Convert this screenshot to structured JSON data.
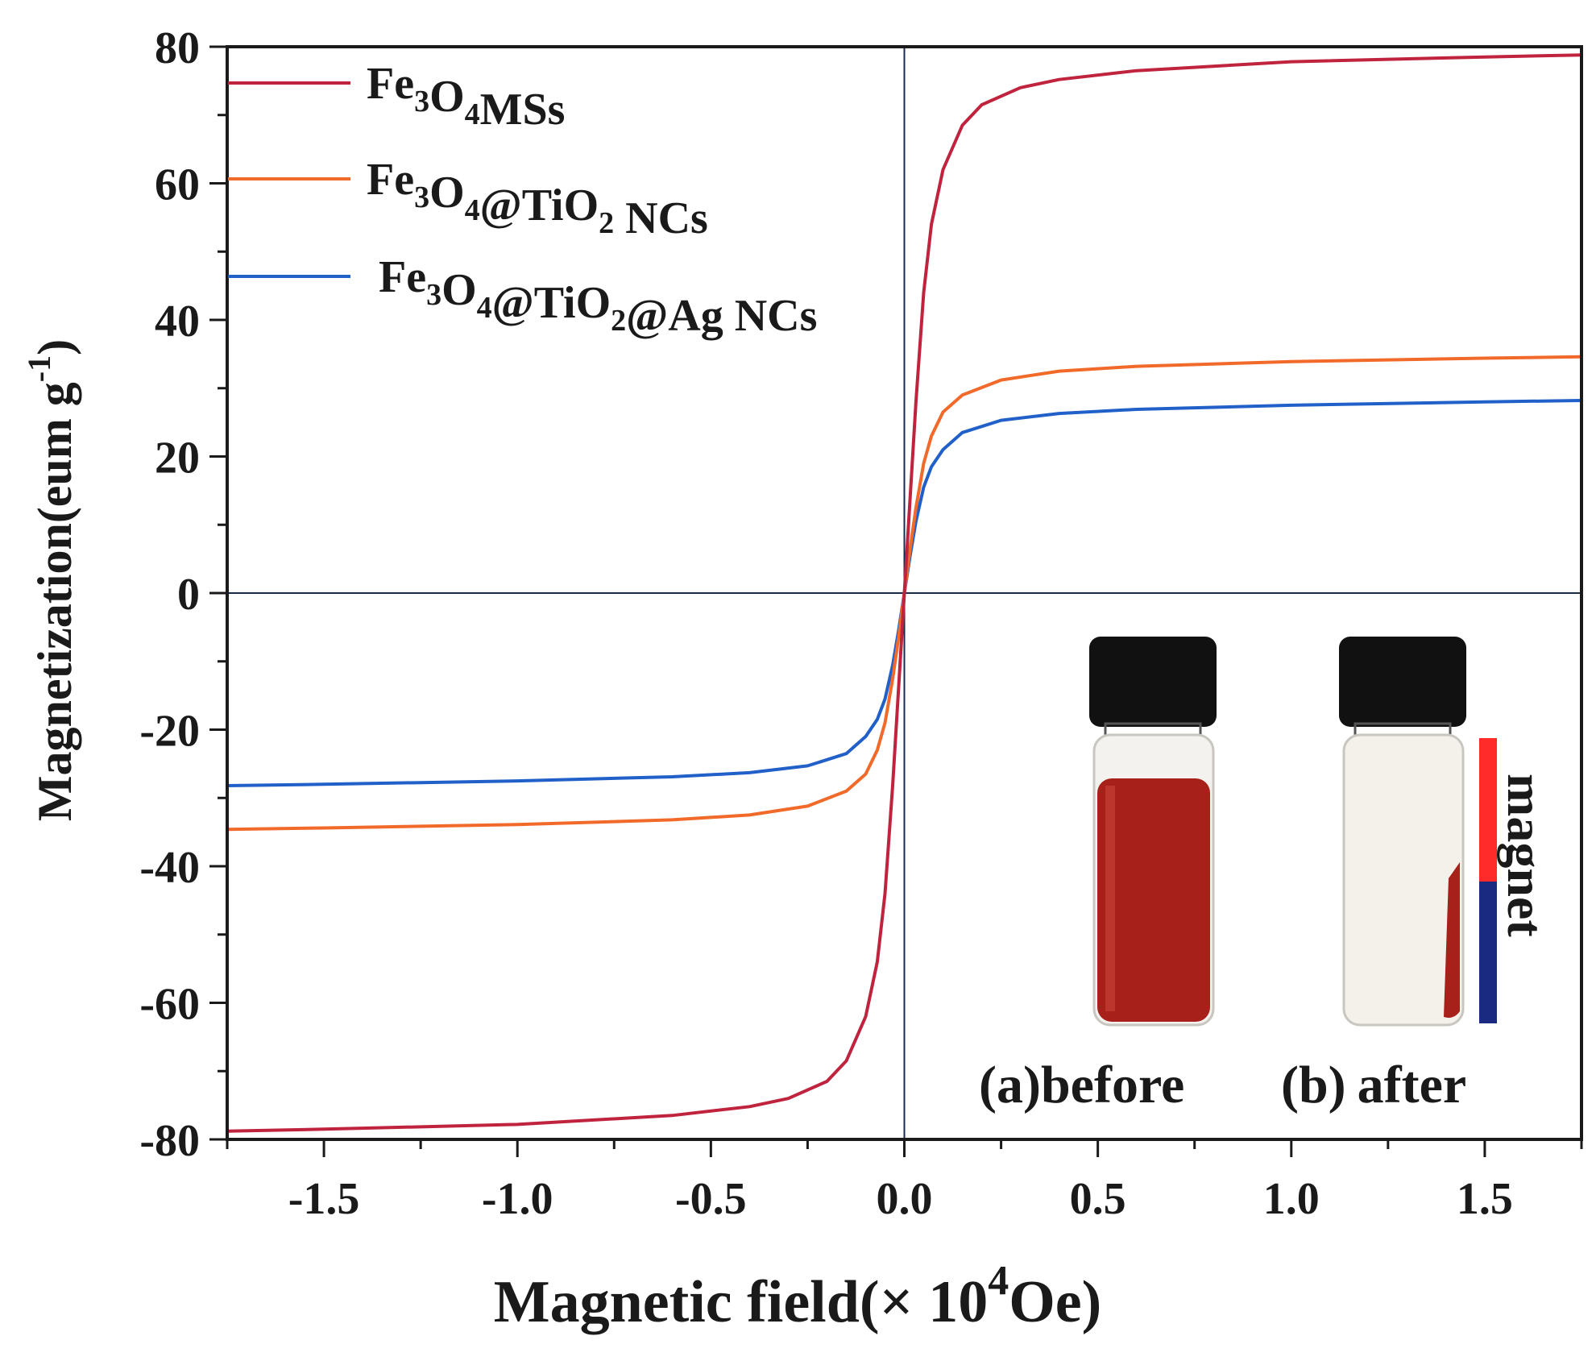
{
  "chart_data": {
    "type": "line",
    "xlabel_main": "Magnetic field(× 10",
    "xlabel_sup": "4",
    "xlabel_unit": "Oe)",
    "ylabel_main": "Magnetization(eum g",
    "ylabel_sup": "-1",
    "ylabel_close": ")",
    "xlim": [
      -1.75,
      1.75
    ],
    "ylim": [
      -80,
      80
    ],
    "xticks": [
      "-1.5",
      "-1.0",
      "-0.5",
      "0.0",
      "0.5",
      "1.0",
      "1.5"
    ],
    "xtick_values": [
      -1.5,
      -1.0,
      -0.5,
      0.0,
      0.5,
      1.0,
      1.5
    ],
    "yticks": [
      "80",
      "60",
      "40",
      "20",
      "0",
      "-20",
      "-40",
      "-60",
      "-80"
    ],
    "ytick_values": [
      80,
      60,
      40,
      20,
      0,
      -20,
      -40,
      -60,
      -80
    ],
    "series": [
      {
        "name": "Fe3O4MSs",
        "label_parts": [
          [
            "Fe",
            ""
          ],
          [
            "3",
            "sub"
          ],
          [
            "O",
            ""
          ],
          [
            "4",
            "sub"
          ],
          [
            "MSs",
            ""
          ]
        ],
        "color": "#c0233e",
        "x": [
          -1.75,
          -1.5,
          -1.0,
          -0.6,
          -0.4,
          -0.3,
          -0.2,
          -0.15,
          -0.1,
          -0.07,
          -0.05,
          -0.03,
          -0.015,
          0.0,
          0.015,
          0.03,
          0.05,
          0.07,
          0.1,
          0.15,
          0.2,
          0.3,
          0.4,
          0.6,
          1.0,
          1.5,
          1.75
        ],
        "y": [
          -78.8,
          -78.5,
          -77.8,
          -76.5,
          -75.2,
          -74.0,
          -71.5,
          -68.5,
          -62.0,
          -54.0,
          -44.0,
          -28.0,
          -14.0,
          0.0,
          14.0,
          28.0,
          44.0,
          54.0,
          62.0,
          68.5,
          71.5,
          74.0,
          75.2,
          76.5,
          77.8,
          78.5,
          78.8
        ]
      },
      {
        "name": "Fe3O4@TiO2 NCs",
        "label_parts": [
          [
            "Fe",
            ""
          ],
          [
            "3",
            "sub"
          ],
          [
            "O",
            ""
          ],
          [
            "4",
            "sub"
          ],
          [
            "@TiO",
            ""
          ],
          [
            "2",
            "sub"
          ],
          [
            " NCs",
            ""
          ]
        ],
        "color": "#f26a2a",
        "x": [
          -1.75,
          -1.5,
          -1.0,
          -0.6,
          -0.4,
          -0.25,
          -0.15,
          -0.1,
          -0.07,
          -0.05,
          -0.03,
          -0.015,
          0.0,
          0.015,
          0.03,
          0.05,
          0.07,
          0.1,
          0.15,
          0.25,
          0.4,
          0.6,
          1.0,
          1.5,
          1.75
        ],
        "y": [
          -34.6,
          -34.4,
          -33.9,
          -33.2,
          -32.5,
          -31.2,
          -29.0,
          -26.5,
          -23.0,
          -19.0,
          -12.5,
          -6.5,
          0.0,
          6.5,
          12.5,
          19.0,
          23.0,
          26.5,
          29.0,
          31.2,
          32.5,
          33.2,
          33.9,
          34.4,
          34.6
        ]
      },
      {
        "name": "Fe3O4@TiO2@Ag NCs",
        "label_parts": [
          [
            "Fe",
            ""
          ],
          [
            "3",
            "sub"
          ],
          [
            "O",
            ""
          ],
          [
            "4",
            "sub"
          ],
          [
            "@TiO",
            ""
          ],
          [
            "2",
            "sub"
          ],
          [
            "@Ag NCs",
            ""
          ]
        ],
        "color": "#2060c8",
        "x": [
          -1.75,
          -1.5,
          -1.0,
          -0.6,
          -0.4,
          -0.25,
          -0.15,
          -0.1,
          -0.07,
          -0.05,
          -0.03,
          -0.015,
          0.0,
          0.015,
          0.03,
          0.05,
          0.07,
          0.1,
          0.15,
          0.25,
          0.4,
          0.6,
          1.0,
          1.5,
          1.75
        ],
        "y": [
          -28.2,
          -28.0,
          -27.5,
          -26.9,
          -26.3,
          -25.3,
          -23.5,
          -21.0,
          -18.5,
          -15.5,
          -10.5,
          -5.5,
          0.0,
          5.5,
          10.5,
          15.5,
          18.5,
          21.0,
          23.5,
          25.3,
          26.3,
          26.9,
          27.5,
          28.0,
          28.2
        ]
      }
    ],
    "inset": {
      "label_a": "(a)",
      "text_a": "before",
      "label_b": "(b)",
      "text_b": "after",
      "magnet_text": "magnet",
      "liquid_color": "#a8201a",
      "cap_color": "#111111",
      "magnet_top_color": "#ff2a2a",
      "magnet_bottom_color": "#1a2a80"
    }
  }
}
